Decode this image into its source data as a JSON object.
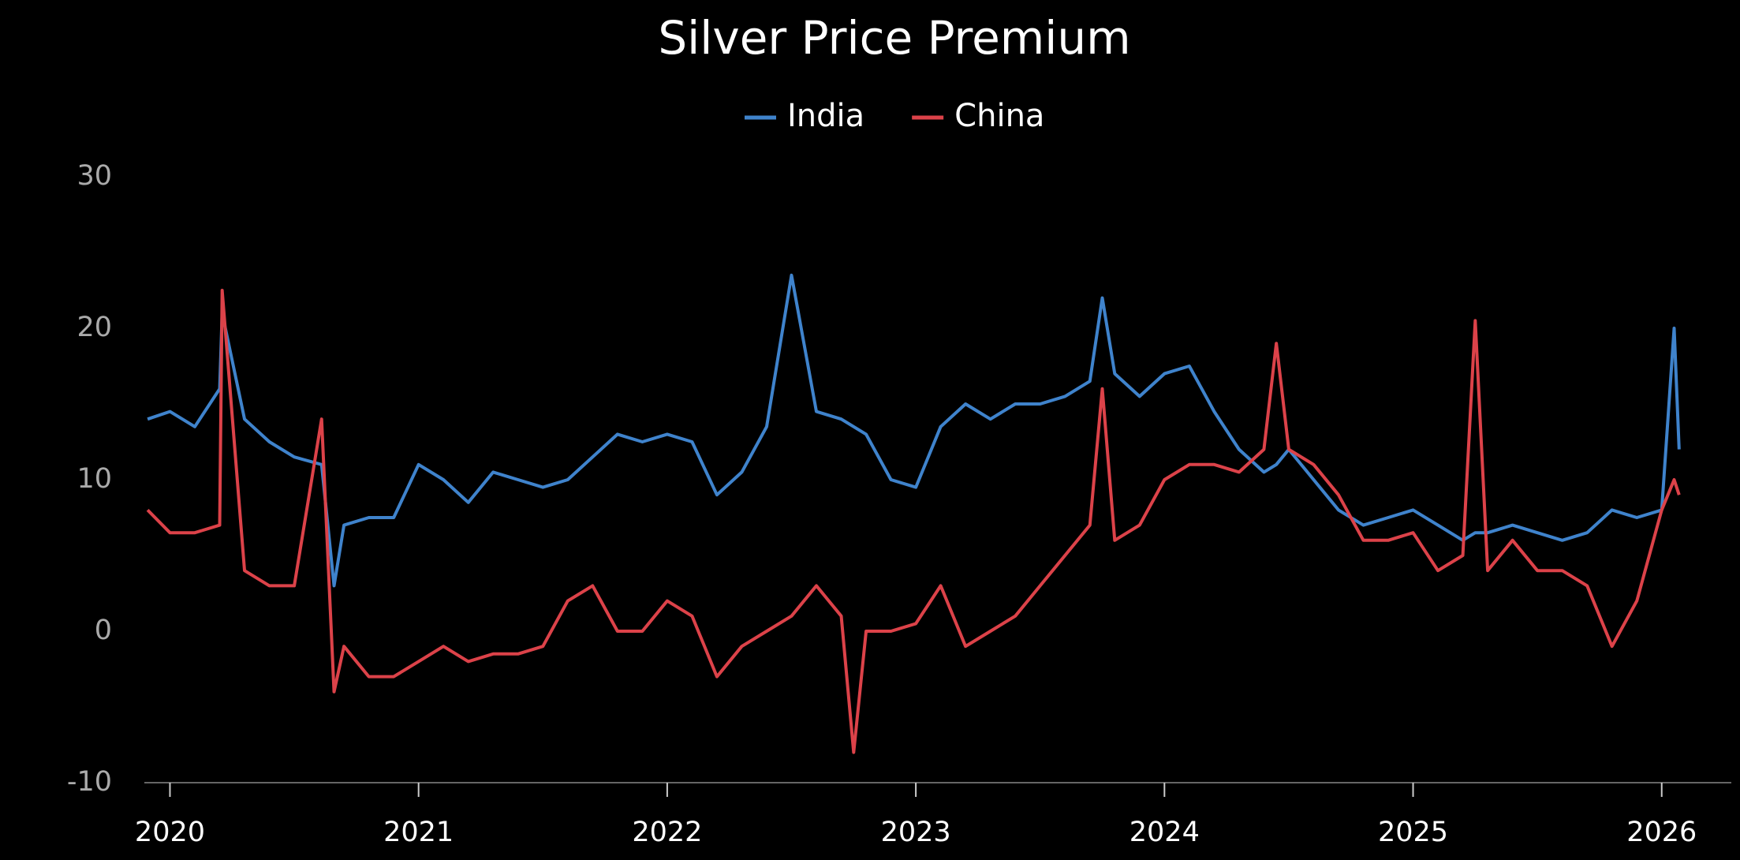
{
  "chart_data": {
    "type": "line",
    "title": "Silver Price Premium",
    "x": [
      2019.91,
      2020.0,
      2020.1,
      2020.2,
      2020.21,
      2020.3,
      2020.4,
      2020.5,
      2020.61,
      2020.66,
      2020.7,
      2020.8,
      2020.9,
      2021.0,
      2021.1,
      2021.2,
      2021.3,
      2021.4,
      2021.5,
      2021.6,
      2021.7,
      2021.8,
      2021.9,
      2022.0,
      2022.1,
      2022.2,
      2022.3,
      2022.4,
      2022.5,
      2022.6,
      2022.7,
      2022.75,
      2022.8,
      2022.9,
      2023.0,
      2023.1,
      2023.2,
      2023.3,
      2023.4,
      2023.5,
      2023.6,
      2023.7,
      2023.75,
      2023.8,
      2023.9,
      2024.0,
      2024.1,
      2024.2,
      2024.3,
      2024.4,
      2024.45,
      2024.5,
      2024.6,
      2024.7,
      2024.8,
      2024.9,
      2025.0,
      2025.1,
      2025.2,
      2025.25,
      2025.3,
      2025.4,
      2025.5,
      2025.6,
      2025.7,
      2025.8,
      2025.9,
      2026.0,
      2026.05,
      2026.07
    ],
    "series": [
      {
        "name": "India",
        "color": "#3f83cc",
        "values": [
          14,
          14.5,
          13.5,
          16,
          21,
          14,
          12.5,
          11.5,
          11,
          3,
          7,
          7.5,
          7.5,
          11,
          10,
          8.5,
          10.5,
          10,
          9.5,
          10,
          11.5,
          13,
          12.5,
          13,
          12.5,
          9,
          10.5,
          13.5,
          23.5,
          14.5,
          14,
          13.5,
          13,
          10,
          9.5,
          13.5,
          15,
          14,
          15,
          15,
          15.5,
          16.5,
          22,
          17,
          15.5,
          17,
          17.5,
          14.5,
          12,
          10.5,
          11,
          12,
          10,
          8,
          7,
          7.5,
          8,
          7,
          6,
          6.5,
          6.5,
          7,
          6.5,
          6,
          6.5,
          8,
          7.5,
          8,
          20,
          12
        ]
      },
      {
        "name": "China",
        "color": "#dc4249",
        "values": [
          8,
          6.5,
          6.5,
          7,
          22.5,
          4,
          3,
          3,
          14,
          -4,
          -1,
          -3,
          -3,
          -2,
          -1,
          -2,
          -1.5,
          -1.5,
          -1,
          2,
          3,
          0,
          0,
          2,
          1,
          -3,
          -1,
          0,
          1,
          3,
          1,
          -8,
          0,
          0,
          0.5,
          3,
          -1,
          0,
          1,
          3,
          5,
          7,
          16,
          6,
          7,
          10,
          11,
          11,
          10.5,
          12,
          19,
          12,
          11,
          9,
          6,
          6,
          6.5,
          4,
          5,
          20.5,
          4,
          6,
          4,
          4,
          3,
          -1,
          2,
          8,
          10,
          9
        ]
      }
    ],
    "xlim": [
      2019.897,
      2026.28
    ],
    "xticks": [
      2020,
      2021,
      2022,
      2023,
      2024,
      2025,
      2026
    ],
    "ylim": [
      -10,
      30
    ],
    "yticks": [
      -10,
      0,
      10,
      20,
      30
    ],
    "legend": "top"
  }
}
